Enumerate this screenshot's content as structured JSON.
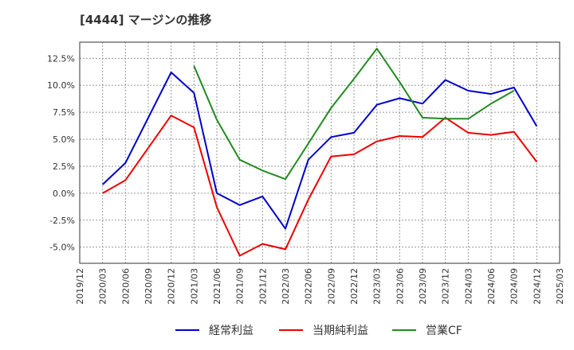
{
  "chart_data": {
    "type": "line",
    "title": "[4444]  マージンの推移",
    "x": [
      "2019/12",
      "2020/03",
      "2020/06",
      "2020/09",
      "2020/12",
      "2021/03",
      "2021/06",
      "2021/09",
      "2021/12",
      "2022/03",
      "2022/06",
      "2022/09",
      "2022/12",
      "2023/03",
      "2023/06",
      "2023/09",
      "2023/12",
      "2024/03",
      "2024/06",
      "2024/09",
      "2024/12",
      "2025/03"
    ],
    "y_ticks": [
      "12.5%",
      "10.0%",
      "7.5%",
      "5.0%",
      "2.5%",
      "0.0%",
      "-2.5%",
      "-5.0%"
    ],
    "ylim": [
      -6.5,
      14
    ],
    "grid": true,
    "legend_position": "bottom",
    "series": [
      {
        "name": "経常利益",
        "color": "#0000cc",
        "values": [
          null,
          0.8,
          2.8,
          7.0,
          11.2,
          9.3,
          0.0,
          -1.1,
          -0.3,
          -3.3,
          3.1,
          5.2,
          5.6,
          8.2,
          8.8,
          8.3,
          10.5,
          9.5,
          9.2,
          9.8,
          6.2,
          null
        ]
      },
      {
        "name": "当期純利益",
        "color": "#ee0000",
        "values": [
          null,
          0.0,
          1.2,
          4.2,
          7.2,
          6.1,
          -1.3,
          -5.8,
          -4.7,
          -5.2,
          -0.6,
          3.4,
          3.6,
          4.8,
          5.3,
          5.2,
          7.0,
          5.6,
          5.4,
          5.7,
          2.9,
          null
        ]
      },
      {
        "name": "営業CF",
        "color": "#228b22",
        "values": [
          null,
          null,
          null,
          null,
          null,
          11.8,
          6.8,
          3.1,
          2.1,
          1.3,
          4.6,
          7.9,
          10.6,
          13.4,
          10.3,
          7.0,
          6.9,
          6.9,
          8.3,
          9.5,
          null,
          null
        ]
      }
    ]
  }
}
